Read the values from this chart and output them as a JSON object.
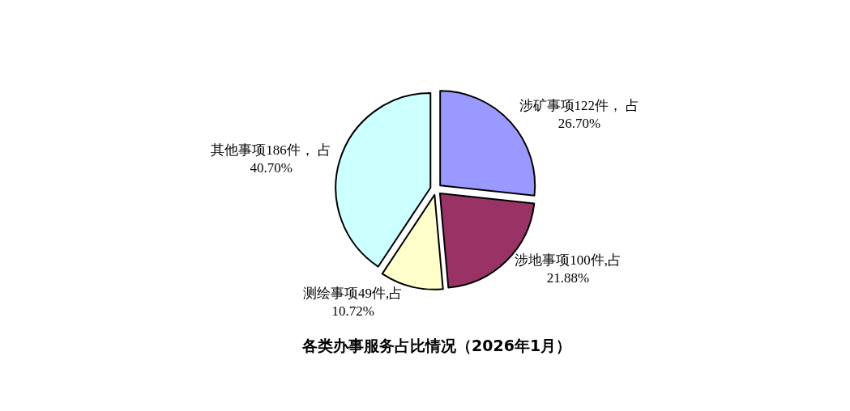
{
  "chart_data": {
    "type": "pie",
    "title": "各类办事服务占比情况（2026年1月）",
    "categories": [
      "涉矿事项122件， 占\n26.70%",
      "涉地事项100件,占\n21.88%",
      "测绘事项49件,占\n10.72%",
      "其他事项186件， 占\n40.70%"
    ],
    "values": [
      122,
      100,
      49,
      186
    ],
    "colors": [
      "#9999ff",
      "#993366",
      "#ffffcc",
      "#ccffff"
    ],
    "legend": false
  }
}
